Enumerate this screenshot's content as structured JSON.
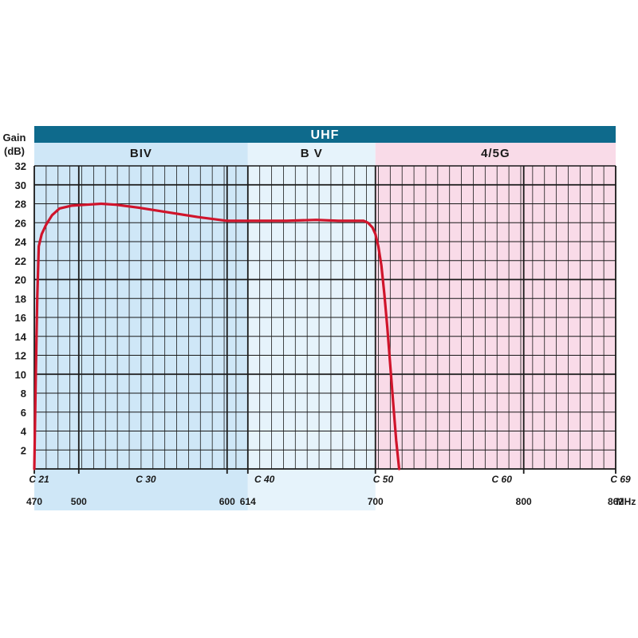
{
  "chart_data": {
    "type": "line",
    "title": "UHF",
    "ylabel": "Gain",
    "ylabel_unit": "(dB)",
    "xunit": "MHz",
    "ylim": [
      0,
      32
    ],
    "xlim": [
      470,
      862
    ],
    "yticks": [
      "2",
      "4",
      "6",
      "8",
      "10",
      "12",
      "14",
      "16",
      "18",
      "20",
      "22",
      "24",
      "26",
      "28",
      "30",
      "32"
    ],
    "xticks": [
      {
        "value": 470,
        "label": "470"
      },
      {
        "value": 500,
        "label": "500"
      },
      {
        "value": 600,
        "label": "600"
      },
      {
        "value": 614,
        "label": "614"
      },
      {
        "value": 700,
        "label": "700"
      },
      {
        "value": 800,
        "label": "800"
      },
      {
        "value": 862,
        "label": "862"
      }
    ],
    "channels": [
      {
        "value": 470,
        "label": "C 21"
      },
      {
        "value": 542,
        "label": "C 30"
      },
      {
        "value": 622,
        "label": "C 40"
      },
      {
        "value": 702,
        "label": "C 50"
      },
      {
        "value": 782,
        "label": "C 60"
      },
      {
        "value": 862,
        "label": "C 69"
      }
    ],
    "bands": [
      {
        "name": "BIV",
        "from": 470,
        "to": 614,
        "color": "#cfe7f7"
      },
      {
        "name": "B V",
        "from": 614,
        "to": 700,
        "color": "#e6f3fb"
      },
      {
        "name": "4/5G",
        "from": 700,
        "to": 862,
        "color": "#f9dbe8"
      }
    ],
    "colors": {
      "header": "#0e6a8c",
      "curve": "#d0142b",
      "grid": "#1a1a1a"
    },
    "grid": true,
    "series": [
      {
        "x": [
          470,
          471,
          472,
          473,
          475,
          478,
          482,
          487,
          495,
          505,
          515,
          525,
          540,
          560,
          580,
          600,
          620,
          640,
          660,
          675,
          685,
          692,
          695,
          698,
          700,
          702,
          704,
          706,
          708,
          710,
          712,
          714,
          716
        ],
        "y": [
          0,
          10,
          18,
          23.5,
          24.8,
          25.8,
          26.8,
          27.5,
          27.8,
          27.9,
          28.0,
          27.9,
          27.6,
          27.1,
          26.6,
          26.2,
          26.2,
          26.2,
          26.3,
          26.2,
          26.2,
          26.2,
          26.0,
          25.5,
          24.8,
          23.5,
          21.5,
          18.5,
          15,
          11,
          7,
          3,
          0
        ]
      }
    ]
  }
}
